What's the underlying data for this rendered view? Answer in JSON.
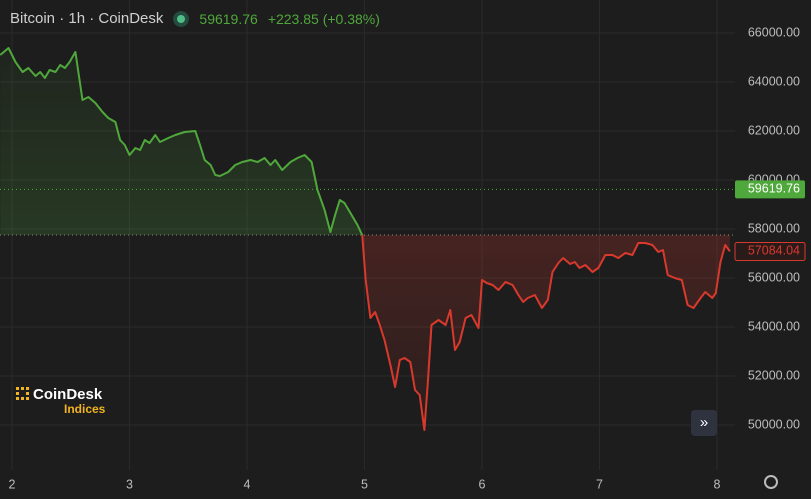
{
  "chart_data": {
    "type": "baseline",
    "title": "Bitcoin · 1h · CoinDesk",
    "header_price": 59619.76,
    "header_change": "+223.85 (+0.38%)",
    "logo": {
      "name": "CoinDesk",
      "sub": "Indices"
    },
    "baseline": 57755,
    "price_line": 59619.76,
    "last_price": 57084.04,
    "up_color": "#4fa83b",
    "down_color": "#d9392c",
    "grid": true,
    "xlim": [
      1.898,
      8.153
    ],
    "ylim": [
      48163,
      67347
    ],
    "xticks": [
      2,
      3,
      4,
      5,
      6,
      7,
      8
    ],
    "yticks": [
      {
        "value": 50000,
        "label": "50000.00"
      },
      {
        "value": 52000,
        "label": "52000.00"
      },
      {
        "value": 54000,
        "label": "54000.00"
      },
      {
        "value": 56000,
        "label": "56000.00"
      },
      {
        "value": 58000,
        "label": "58000.00"
      },
      {
        "value": 60000,
        "label": "60000.00"
      },
      {
        "value": 62000,
        "label": "62000.00"
      },
      {
        "value": 64000,
        "label": "64000.00"
      },
      {
        "value": 66000,
        "label": "66000.00"
      }
    ],
    "x": [
      1.9,
      1.97,
      2.03,
      2.09,
      2.14,
      2.2,
      2.24,
      2.28,
      2.32,
      2.37,
      2.41,
      2.45,
      2.49,
      2.54,
      2.6,
      2.65,
      2.71,
      2.77,
      2.82,
      2.88,
      2.92,
      2.96,
      3.0,
      3.05,
      3.09,
      3.13,
      3.17,
      3.22,
      3.26,
      3.33,
      3.39,
      3.47,
      3.56,
      3.6,
      3.64,
      3.69,
      3.73,
      3.77,
      3.84,
      3.9,
      3.96,
      4.03,
      4.09,
      4.15,
      4.2,
      4.24,
      4.3,
      4.37,
      4.43,
      4.49,
      4.55,
      4.6,
      4.66,
      4.71,
      4.75,
      4.79,
      4.83,
      4.89,
      4.94,
      4.98,
      5.01,
      5.05,
      5.09,
      5.13,
      5.17,
      5.22,
      5.26,
      5.3,
      5.34,
      5.39,
      5.43,
      5.47,
      5.51,
      5.54,
      5.57,
      5.63,
      5.69,
      5.73,
      5.77,
      5.81,
      5.86,
      5.91,
      5.97,
      6.0,
      6.04,
      6.09,
      6.14,
      6.2,
      6.26,
      6.31,
      6.35,
      6.39,
      6.45,
      6.51,
      6.56,
      6.6,
      6.65,
      6.69,
      6.75,
      6.79,
      6.83,
      6.88,
      6.94,
      6.99,
      7.05,
      7.11,
      7.16,
      7.22,
      7.28,
      7.33,
      7.39,
      7.45,
      7.5,
      7.54,
      7.58,
      7.64,
      7.7,
      7.75,
      7.8,
      7.86,
      7.9,
      7.96,
      7.99,
      8.03,
      8.07,
      8.11
    ],
    "values": [
      65102,
      65388,
      64816,
      64408,
      64571,
      64245,
      64408,
      64163,
      64490,
      64408,
      64694,
      64571,
      64816,
      65224,
      63265,
      63388,
      63143,
      62776,
      62531,
      62367,
      61633,
      61429,
      61020,
      61306,
      61224,
      61633,
      61510,
      61837,
      61551,
      61714,
      61837,
      61959,
      62000,
      61429,
      60816,
      60612,
      60204,
      60163,
      60327,
      60612,
      60735,
      60816,
      60735,
      60898,
      60612,
      60816,
      60408,
      60735,
      60898,
      61020,
      60735,
      59592,
      58776,
      57878,
      58571,
      59184,
      59061,
      58571,
      58163,
      57755,
      55918,
      54367,
      54612,
      54082,
      53469,
      52449,
      51551,
      52653,
      52735,
      52571,
      51429,
      51224,
      49796,
      51837,
      54082,
      54286,
      54082,
      54694,
      53061,
      53388,
      54367,
      54490,
      53959,
      55918,
      55796,
      55714,
      55510,
      55837,
      55714,
      55306,
      55020,
      55184,
      55306,
      54776,
      55102,
      56245,
      56612,
      56816,
      56571,
      56653,
      56408,
      56531,
      56245,
      56408,
      56939,
      56939,
      56816,
      57020,
      56939,
      57429,
      57429,
      57347,
      57061,
      57143,
      56122,
      55998,
      55918,
      54898,
      54776,
      55184,
      55429,
      55184,
      55388,
      56653,
      57347,
      57084.04
    ]
  }
}
